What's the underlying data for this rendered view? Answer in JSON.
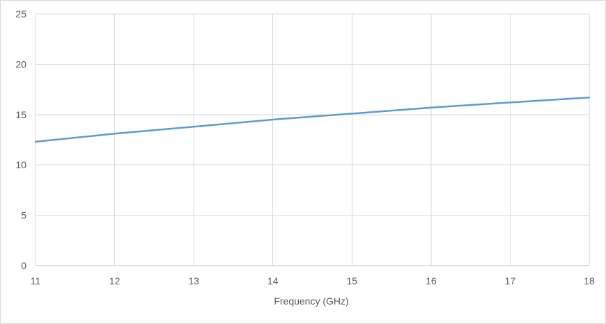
{
  "chart_data": {
    "type": "line",
    "title": "",
    "xlabel": "Frequency (GHz)",
    "ylabel": "",
    "xlim": [
      11,
      18
    ],
    "ylim": [
      0,
      25
    ],
    "x_ticks": [
      11,
      12,
      13,
      14,
      15,
      16,
      17,
      18
    ],
    "y_ticks": [
      0,
      5,
      10,
      15,
      20,
      25
    ],
    "grid": true,
    "legend": "none",
    "series": [
      {
        "color": "#5b9bd5",
        "x": [
          11,
          12,
          13,
          14,
          15,
          16,
          17,
          18
        ],
        "y": [
          12.3,
          13.1,
          13.8,
          14.5,
          15.1,
          15.7,
          16.2,
          16.7
        ]
      }
    ]
  }
}
